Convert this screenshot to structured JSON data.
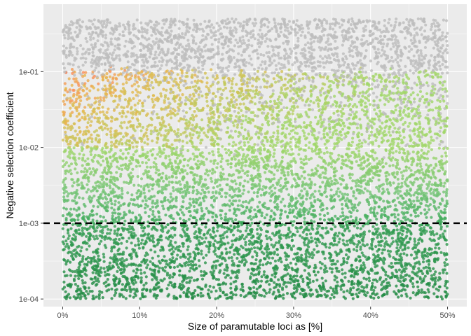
{
  "chart_data": {
    "type": "scatter",
    "title": "",
    "xlabel": "Size of paramutable loci as [%]",
    "ylabel": "Negative selection coefficient",
    "x_scale": "linear",
    "y_scale": "log10",
    "xlim": [
      -0.025,
      0.525
    ],
    "ylim": [
      7.94e-05,
      0.776
    ],
    "x_ticks": [
      {
        "value": 0.0,
        "label": "0%"
      },
      {
        "value": 0.1,
        "label": "10%"
      },
      {
        "value": 0.2,
        "label": "20%"
      },
      {
        "value": 0.3,
        "label": "30%"
      },
      {
        "value": 0.4,
        "label": "40%"
      },
      {
        "value": 0.5,
        "label": "50%"
      }
    ],
    "y_ticks": [
      {
        "value": 0.0001,
        "label": "1e-04"
      },
      {
        "value": 0.001,
        "label": "1e-03"
      },
      {
        "value": 0.01,
        "label": "1e-02"
      },
      {
        "value": 0.1,
        "label": "1e-01"
      }
    ],
    "reference_line": {
      "axis": "y",
      "value": 0.001,
      "style": "dashed",
      "color": "#000000"
    },
    "grid": true,
    "legend": "none",
    "colors": {
      "panel_background": "#ebebeb",
      "grid_major": "#ffffff",
      "neutral": "#bdbdbd",
      "deep_green": "#238b45",
      "green": "#41ab5d",
      "mid_green": "#74c476",
      "light_green": "#a1d76a",
      "yellow_orange": "#e6b84e",
      "orange": "#fc8d59",
      "red": "#d73027"
    },
    "point_cloud": {
      "n_points": 9000,
      "x_range": [
        0.0,
        0.5
      ],
      "y_range": [
        0.0001,
        0.5
      ],
      "distribution": "uniform in x, log-uniform in y",
      "color_rule": "points above ~0.1 are grey; below, color shifts from dark green (low coefficient) through light green to orange/red for high coefficients at small paramutable loci"
    }
  }
}
